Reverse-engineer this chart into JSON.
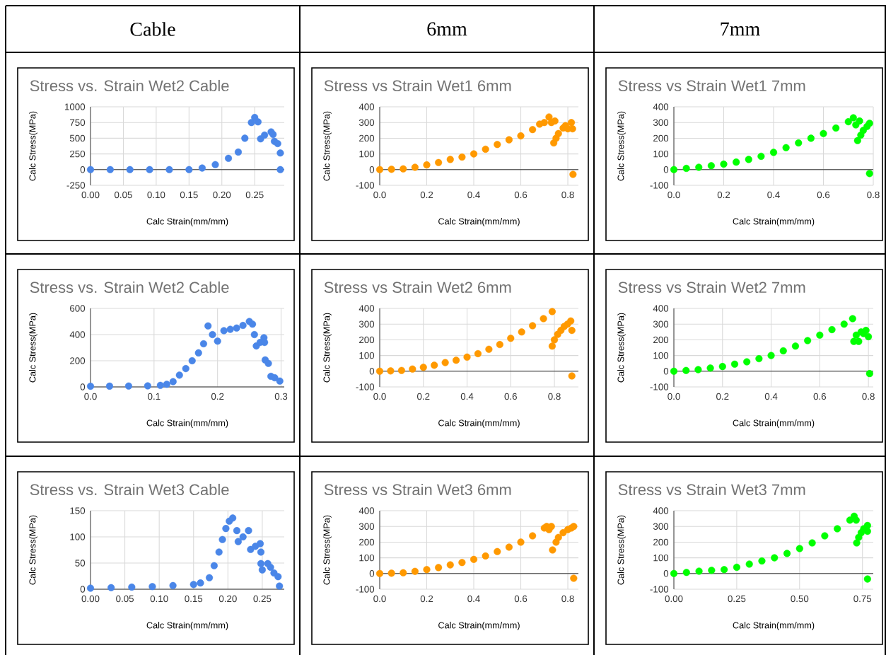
{
  "chart_data": [
    {
      "type": "scatter",
      "title": "Stress vs. Strain Wet2 Cable",
      "xlabel": "Calc Strain(mm/mm)",
      "ylabel": "Calc Stress(MPa)",
      "annotations": [
        "Cable"
      ],
      "color": "#4a86e8",
      "marker": "circle",
      "grid": true,
      "x": [
        0,
        0.03,
        0.06,
        0.09,
        0.12,
        0.15,
        0.17,
        0.19,
        0.21,
        0.225,
        0.235,
        0.245,
        0.25,
        0.255,
        0.259,
        0.265,
        0.275,
        0.278,
        0.28,
        0.285,
        0.289,
        0.289
      ],
      "values": [
        0,
        0,
        0,
        0,
        0,
        0,
        25,
        80,
        180,
        280,
        500,
        750,
        830,
        760,
        490,
        550,
        600,
        560,
        450,
        415,
        265,
        0
      ],
      "xlim": [
        0,
        0.295
      ],
      "ylim": [
        -250,
        1000
      ],
      "xticks": [
        {
          "value": 0,
          "label": "0.00"
        },
        {
          "value": 0.05,
          "label": "0.05"
        },
        {
          "value": 0.1,
          "label": "0.10"
        },
        {
          "value": 0.15,
          "label": "0.15"
        },
        {
          "value": 0.2,
          "label": "0.20"
        },
        {
          "value": 0.25,
          "label": "0.25"
        }
      ],
      "yticks": [
        -250,
        0,
        250,
        500,
        750,
        1000
      ]
    },
    {
      "type": "scatter",
      "title": "Stress vs Strain Wet1 6mm",
      "xlabel": "Calc Strain(mm/mm)",
      "ylabel": "Calc Stress(MPa)",
      "annotations": [
        "6mm"
      ],
      "color": "#ff9900",
      "marker": "circle",
      "grid": true,
      "x": [
        0,
        0.05,
        0.1,
        0.15,
        0.2,
        0.25,
        0.3,
        0.35,
        0.4,
        0.45,
        0.5,
        0.55,
        0.6,
        0.65,
        0.68,
        0.7,
        0.72,
        0.73,
        0.745,
        0.74,
        0.75,
        0.76,
        0.78,
        0.79,
        0.8,
        0.815,
        0.82,
        0.822
      ],
      "values": [
        0,
        2,
        5,
        15,
        30,
        45,
        65,
        80,
        100,
        130,
        160,
        190,
        215,
        255,
        290,
        300,
        335,
        300,
        310,
        170,
        200,
        230,
        265,
        280,
        260,
        300,
        260,
        -30
      ],
      "xlim": [
        0,
        0.845
      ],
      "ylim": [
        -100,
        400
      ],
      "xticks": [
        {
          "value": 0,
          "label": "0.0"
        },
        {
          "value": 0.2,
          "label": "0.2"
        },
        {
          "value": 0.4,
          "label": "0.4"
        },
        {
          "value": 0.6,
          "label": "0.6"
        },
        {
          "value": 0.8,
          "label": "0.8"
        }
      ],
      "yticks": [
        -100,
        0,
        100,
        200,
        300,
        400
      ]
    },
    {
      "type": "scatter",
      "title": "Stress vs Strain Wet1 7mm",
      "xlabel": "Calc Strain(mm/mm)",
      "ylabel": "Calc Stress(MPa)",
      "annotations": [
        "7mm"
      ],
      "color": "#00ff00",
      "marker": "circle",
      "grid": true,
      "x": [
        0,
        0.05,
        0.1,
        0.15,
        0.2,
        0.25,
        0.3,
        0.35,
        0.4,
        0.45,
        0.5,
        0.55,
        0.6,
        0.65,
        0.7,
        0.72,
        0.73,
        0.745,
        0.737,
        0.75,
        0.76,
        0.775,
        0.785,
        0.785
      ],
      "values": [
        0,
        8,
        15,
        25,
        35,
        48,
        65,
        85,
        110,
        140,
        170,
        200,
        230,
        265,
        305,
        330,
        285,
        310,
        185,
        220,
        250,
        275,
        295,
        -25
      ],
      "xlim": [
        0,
        0.8
      ],
      "ylim": [
        -100,
        400
      ],
      "xticks": [
        {
          "value": 0,
          "label": "0.0"
        },
        {
          "value": 0.2,
          "label": "0.2"
        },
        {
          "value": 0.4,
          "label": "0.4"
        },
        {
          "value": 0.6,
          "label": "0.6"
        },
        {
          "value": 0.8,
          "label": "0.8"
        }
      ],
      "yticks": [
        -100,
        0,
        100,
        200,
        300,
        400
      ]
    },
    {
      "type": "scatter",
      "title": "Stress vs. Strain Wet2 Cable",
      "xlabel": "Calc Strain(mm/mm)",
      "ylabel": "Calc Stress(MPa)",
      "color": "#4a86e8",
      "marker": "circle",
      "grid": true,
      "x": [
        0,
        0.03,
        0.06,
        0.09,
        0.11,
        0.12,
        0.13,
        0.14,
        0.15,
        0.16,
        0.17,
        0.178,
        0.185,
        0.192,
        0.2,
        0.21,
        0.22,
        0.23,
        0.24,
        0.25,
        0.255,
        0.258,
        0.261,
        0.267,
        0.273,
        0.274,
        0.275,
        0.28,
        0.284,
        0.29,
        0.298
      ],
      "values": [
        5,
        6,
        7,
        8,
        12,
        20,
        40,
        90,
        140,
        200,
        260,
        330,
        466,
        400,
        350,
        430,
        440,
        450,
        470,
        500,
        480,
        400,
        313,
        340,
        376,
        340,
        206,
        180,
        81,
        70,
        45
      ],
      "xlim": [
        0,
        0.305
      ],
      "ylim": [
        0,
        600
      ],
      "xticks": [
        {
          "value": 0,
          "label": "0.0"
        },
        {
          "value": 0.1,
          "label": "0.1"
        },
        {
          "value": 0.2,
          "label": "0.2"
        },
        {
          "value": 0.3,
          "label": "0.3"
        }
      ],
      "yticks": [
        0,
        200,
        400,
        600
      ]
    },
    {
      "type": "scatter",
      "title": "Stress vs Strain Wet2 6mm",
      "xlabel": "Calc Strain(mm/mm)",
      "ylabel": "Calc Stress(MPa)",
      "color": "#ff9900",
      "marker": "circle",
      "grid": true,
      "x": [
        0,
        0.05,
        0.1,
        0.15,
        0.2,
        0.25,
        0.3,
        0.35,
        0.4,
        0.45,
        0.5,
        0.55,
        0.6,
        0.65,
        0.7,
        0.75,
        0.79,
        0.79,
        0.8,
        0.815,
        0.83,
        0.845,
        0.86,
        0.875,
        0.88,
        0.88
      ],
      "values": [
        0,
        2,
        5,
        14,
        25,
        38,
        55,
        70,
        90,
        112,
        140,
        170,
        210,
        250,
        290,
        335,
        380,
        160,
        200,
        235,
        260,
        285,
        300,
        320,
        260,
        -30
      ],
      "xlim": [
        0,
        0.91
      ],
      "ylim": [
        -100,
        400
      ],
      "xticks": [
        {
          "value": 0,
          "label": "0.0"
        },
        {
          "value": 0.2,
          "label": "0.2"
        },
        {
          "value": 0.4,
          "label": "0.4"
        },
        {
          "value": 0.6,
          "label": "0.6"
        },
        {
          "value": 0.8,
          "label": "0.8"
        }
      ],
      "yticks": [
        -100,
        0,
        100,
        200,
        300,
        400
      ]
    },
    {
      "type": "scatter",
      "title": "Stress vs Strain Wet2 7mm",
      "xlabel": "Calc Strain(mm/mm)",
      "ylabel": "Calc Stress(MPa)",
      "color": "#00ff00",
      "marker": "circle",
      "grid": true,
      "x": [
        0,
        0.05,
        0.1,
        0.15,
        0.2,
        0.25,
        0.3,
        0.35,
        0.4,
        0.45,
        0.5,
        0.55,
        0.6,
        0.65,
        0.7,
        0.735,
        0.74,
        0.75,
        0.76,
        0.77,
        0.78,
        0.79,
        0.8,
        0.805
      ],
      "values": [
        0,
        5,
        10,
        20,
        30,
        45,
        60,
        80,
        100,
        130,
        160,
        195,
        230,
        265,
        300,
        335,
        190,
        230,
        190,
        250,
        240,
        260,
        220,
        -15
      ],
      "xlim": [
        0,
        0.82
      ],
      "ylim": [
        -100,
        400
      ],
      "xticks": [
        {
          "value": 0,
          "label": "0.0"
        },
        {
          "value": 0.2,
          "label": "0.2"
        },
        {
          "value": 0.4,
          "label": "0.4"
        },
        {
          "value": 0.6,
          "label": "0.6"
        },
        {
          "value": 0.8,
          "label": "0.8"
        }
      ],
      "yticks": [
        -100,
        0,
        100,
        200,
        300,
        400
      ]
    },
    {
      "type": "scatter",
      "title": "Stress vs. Strain Wet3 Cable",
      "xlabel": "Calc Strain(mm/mm)",
      "ylabel": "Calc Stress(MPa)",
      "color": "#4a86e8",
      "marker": "circle",
      "grid": true,
      "x": [
        0,
        0.03,
        0.06,
        0.09,
        0.12,
        0.15,
        0.16,
        0.173,
        0.18,
        0.187,
        0.192,
        0.197,
        0.202,
        0.207,
        0.213,
        0.215,
        0.222,
        0.23,
        0.233,
        0.24,
        0.247,
        0.248,
        0.248,
        0.25,
        0.258,
        0.262,
        0.267,
        0.273,
        0.275
      ],
      "values": [
        2,
        3,
        4,
        5,
        7,
        9,
        12,
        22,
        45,
        71,
        95,
        116,
        130,
        136,
        112,
        91,
        100,
        112,
        76,
        82,
        87,
        71,
        49,
        37,
        49,
        42,
        31,
        24,
        6
      ],
      "xlim": [
        0,
        0.282
      ],
      "ylim": [
        0,
        150
      ],
      "xticks": [
        {
          "value": 0,
          "label": "0.00"
        },
        {
          "value": 0.05,
          "label": "0.05"
        },
        {
          "value": 0.1,
          "label": "0.10"
        },
        {
          "value": 0.15,
          "label": "0.15"
        },
        {
          "value": 0.2,
          "label": "0.20"
        },
        {
          "value": 0.25,
          "label": "0.25"
        }
      ],
      "yticks": [
        0,
        50,
        100,
        150
      ]
    },
    {
      "type": "scatter",
      "title": "Stress vs Strain Wet3 6mm",
      "xlabel": "Calc Strain(mm/mm)",
      "ylabel": "Calc Stress(MPa)",
      "color": "#ff9900",
      "marker": "circle",
      "grid": true,
      "x": [
        0,
        0.05,
        0.1,
        0.15,
        0.2,
        0.25,
        0.3,
        0.35,
        0.4,
        0.45,
        0.5,
        0.55,
        0.6,
        0.65,
        0.7,
        0.71,
        0.72,
        0.73,
        0.735,
        0.75,
        0.76,
        0.78,
        0.8,
        0.815,
        0.825,
        0.825
      ],
      "values": [
        0,
        2,
        5,
        14,
        25,
        38,
        55,
        70,
        90,
        112,
        140,
        168,
        200,
        240,
        290,
        300,
        280,
        300,
        150,
        200,
        230,
        260,
        280,
        290,
        300,
        -30
      ],
      "xlim": [
        0,
        0.845
      ],
      "ylim": [
        -100,
        400
      ],
      "xticks": [
        {
          "value": 0,
          "label": "0.0"
        },
        {
          "value": 0.2,
          "label": "0.2"
        },
        {
          "value": 0.4,
          "label": "0.4"
        },
        {
          "value": 0.6,
          "label": "0.6"
        },
        {
          "value": 0.8,
          "label": "0.8"
        }
      ],
      "yticks": [
        -100,
        0,
        100,
        200,
        300,
        400
      ]
    },
    {
      "type": "scatter",
      "title": "Stress vs Strain Wet3 7mm",
      "xlabel": "Calc Strain(mm/mm)",
      "ylabel": "Calc Stress(MPa)",
      "color": "#00ff00",
      "marker": "circle",
      "grid": true,
      "x": [
        0,
        0.05,
        0.1,
        0.15,
        0.2,
        0.25,
        0.3,
        0.35,
        0.4,
        0.45,
        0.5,
        0.55,
        0.6,
        0.65,
        0.7,
        0.717,
        0.725,
        0.727,
        0.735,
        0.745,
        0.755,
        0.77,
        0.77,
        0.77
      ],
      "values": [
        0,
        7,
        15,
        20,
        25,
        40,
        60,
        80,
        100,
        128,
        159,
        195,
        240,
        285,
        340,
        365,
        340,
        195,
        230,
        260,
        285,
        306,
        269,
        -35
      ],
      "xlim": [
        0,
        0.793
      ],
      "ylim": [
        -100,
        400
      ],
      "xticks": [
        {
          "value": 0,
          "label": "0.00"
        },
        {
          "value": 0.25,
          "label": "0.25"
        },
        {
          "value": 0.5,
          "label": "0.50"
        },
        {
          "value": 0.75,
          "label": "0.75"
        }
      ],
      "yticks": [
        -100,
        0,
        100,
        200,
        300,
        400
      ]
    }
  ]
}
